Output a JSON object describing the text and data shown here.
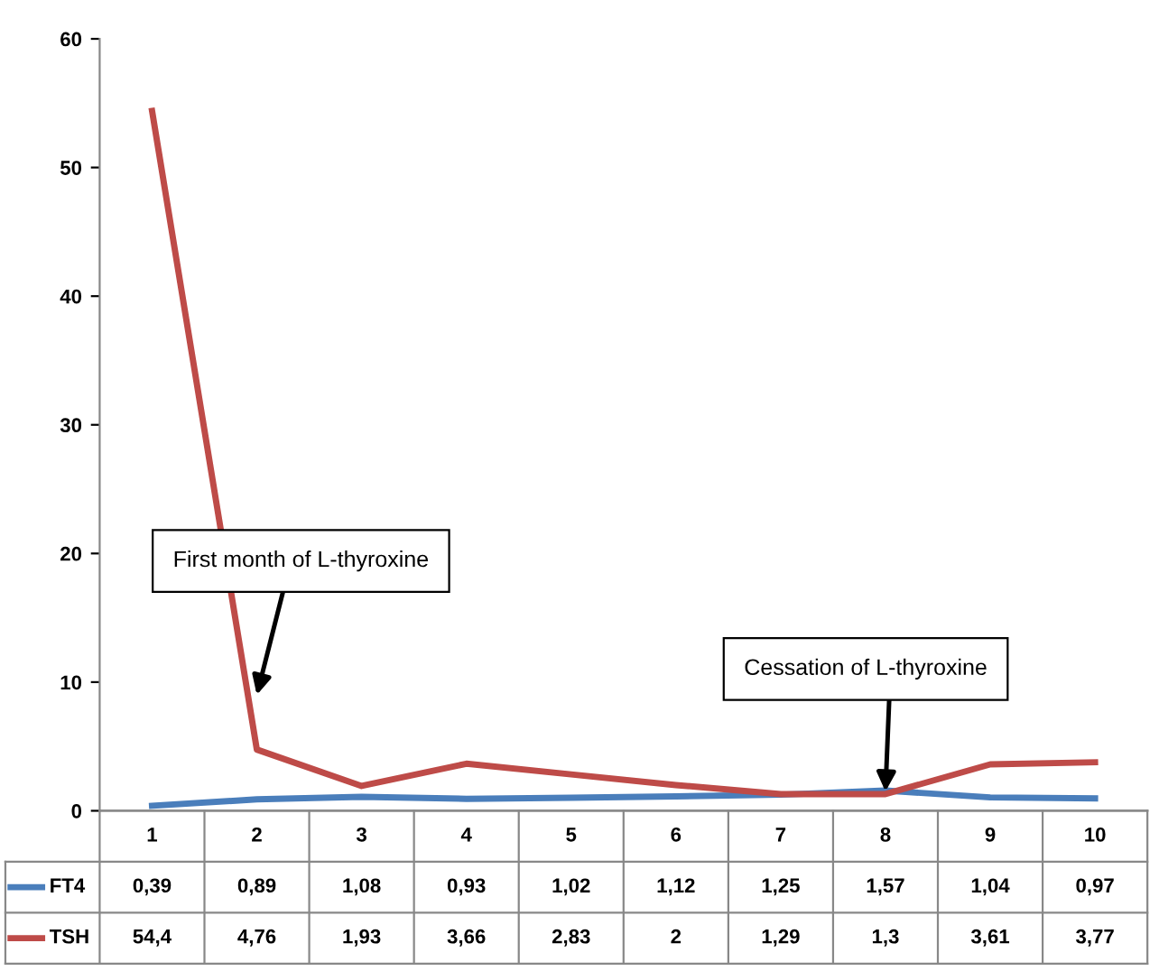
{
  "chart_data": {
    "type": "line",
    "categories": [
      "1",
      "2",
      "3",
      "4",
      "5",
      "6",
      "7",
      "8",
      "9",
      "10"
    ],
    "series": [
      {
        "name": "FT4",
        "color": "#4a7ebb",
        "values": [
          0.39,
          0.89,
          1.08,
          0.93,
          1.02,
          1.12,
          1.25,
          1.57,
          1.04,
          0.97
        ],
        "value_labels": [
          "0,39",
          "0,89",
          "1,08",
          "0,93",
          "1,02",
          "1,12",
          "1,25",
          "1,57",
          "1,04",
          "0,97"
        ]
      },
      {
        "name": "TSH",
        "color": "#be4b48",
        "values": [
          54.4,
          4.76,
          1.93,
          3.66,
          2.83,
          2,
          1.29,
          1.3,
          3.61,
          3.77
        ],
        "value_labels": [
          "54,4",
          "4,76",
          "1,93",
          "3,66",
          "2,83",
          "2",
          "1,29",
          "1,3",
          "3,61",
          "3,77"
        ]
      }
    ],
    "ylim": [
      0,
      60
    ],
    "yticks": [
      0,
      10,
      20,
      30,
      40,
      50,
      60
    ],
    "grid": false,
    "legend": "bottom",
    "marker": "none",
    "line_style": "solid",
    "annotations": [
      {
        "text": "First month of L-thyroxine",
        "x": "2",
        "y": 9
      },
      {
        "text": "Cessation of L-thyroxine",
        "x": "8",
        "y": 1.5
      }
    ]
  }
}
